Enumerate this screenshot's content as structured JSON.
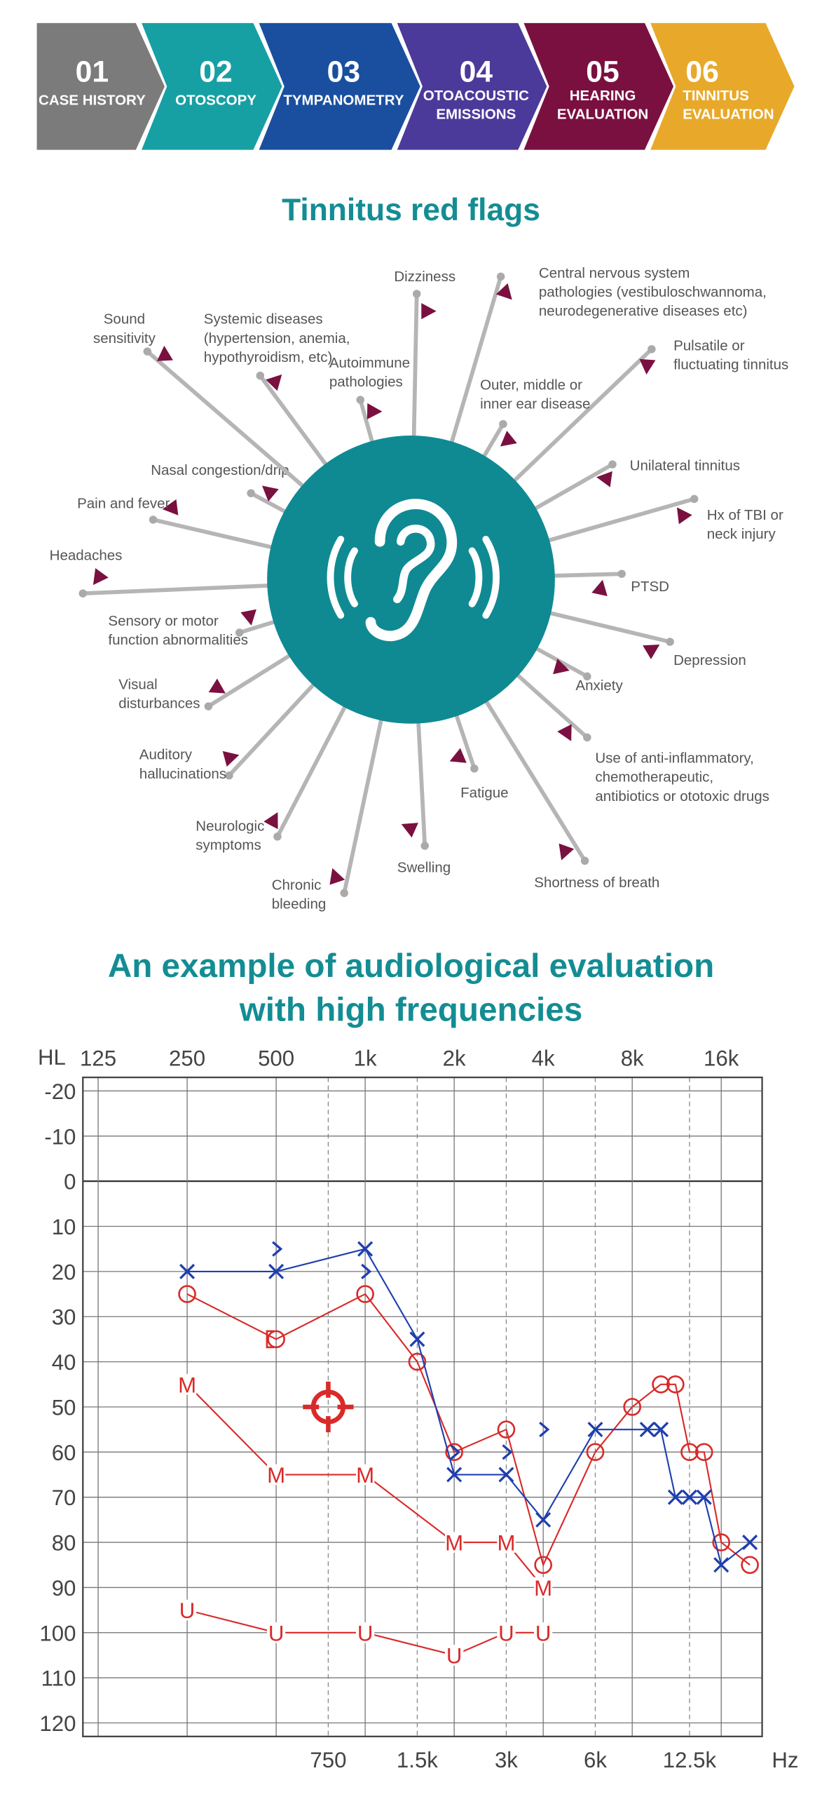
{
  "steps": [
    {
      "number": "01",
      "label": [
        "CASE HISTORY"
      ]
    },
    {
      "number": "02",
      "label": [
        "OTOSCOPY"
      ]
    },
    {
      "number": "03",
      "label": [
        "TYMPANOMETRY"
      ]
    },
    {
      "number": "04",
      "label": [
        "OTOACOUSTIC",
        "EMISSIONS"
      ]
    },
    {
      "number": "05",
      "label": [
        "HEARING",
        "EVALUATION"
      ]
    },
    {
      "number": "06",
      "label": [
        "TINNITUS",
        "EVALUATION"
      ]
    }
  ],
  "red_flags": {
    "title": "Tinnitus red flags",
    "items": [
      {
        "lines": [
          "Dizziness"
        ]
      },
      {
        "lines": [
          "Central nervous system",
          "pathologies (vestibuloschwannoma,",
          "neurodegenerative diseases etc)"
        ]
      },
      {
        "lines": [
          "Pulsatile  or",
          "fluctuating tinnitus"
        ]
      },
      {
        "lines": [
          "Outer, middle or",
          "inner ear disease"
        ]
      },
      {
        "lines": [
          "Unilateral tinnitus"
        ]
      },
      {
        "lines": [
          "Hx of TBI or",
          "neck injury"
        ]
      },
      {
        "lines": [
          "PTSD"
        ]
      },
      {
        "lines": [
          "Depression"
        ]
      },
      {
        "lines": [
          "Anxiety"
        ]
      },
      {
        "lines": [
          "Use of anti-inflammatory,",
          "chemotherapeutic,",
          "antibiotics or ototoxic drugs"
        ]
      },
      {
        "lines": [
          "Shortness of breath"
        ]
      },
      {
        "lines": [
          "Fatigue"
        ]
      },
      {
        "lines": [
          "Swelling"
        ]
      },
      {
        "lines": [
          "Chronic",
          "bleeding"
        ]
      },
      {
        "lines": [
          "Neurologic",
          "symptoms"
        ]
      },
      {
        "lines": [
          "Auditory",
          "hallucinations"
        ]
      },
      {
        "lines": [
          "Visual",
          "disturbances"
        ]
      },
      {
        "lines": [
          "Sensory or motor",
          "function abnormalities"
        ]
      },
      {
        "lines": [
          "Headaches"
        ]
      },
      {
        "lines": [
          "Pain and fever"
        ]
      },
      {
        "lines": [
          "Nasal congestion/drip"
        ]
      },
      {
        "lines": [
          "Sound",
          "sensitivity"
        ]
      },
      {
        "lines": [
          "Systemic diseases",
          "(hypertension, anemia,",
          "hypothyroidism, etc)"
        ]
      },
      {
        "lines": [
          "Autoimmune",
          "pathologies"
        ]
      }
    ]
  },
  "chart_data": {
    "type": "line",
    "title": [
      "An example of audiological evaluation",
      "with high frequencies"
    ],
    "x_label": "Hz",
    "y_label": "HL",
    "xscale": "log",
    "xlim": [
      111,
      22000
    ],
    "ylim": [
      -23,
      123
    ],
    "y_inverted": true,
    "grid": true,
    "xticks": [
      125,
      250,
      500,
      {
        "value": 1000,
        "label": "1k"
      },
      {
        "value": 2000,
        "label": "2k"
      },
      {
        "value": 4000,
        "label": "4k"
      },
      {
        "value": 8000,
        "label": "8k"
      },
      {
        "value": 16000,
        "label": "16k"
      }
    ],
    "xticks_bottom": [
      750,
      {
        "value": 1500,
        "label": "1.5k"
      },
      {
        "value": 3000,
        "label": "3k"
      },
      {
        "value": 6000,
        "label": "6k"
      },
      {
        "value": 12500,
        "label": "12.5k"
      }
    ],
    "yticks": [
      -20,
      -10,
      0,
      10,
      20,
      30,
      40,
      50,
      60,
      70,
      80,
      90,
      100,
      110,
      120
    ],
    "series": [
      {
        "color": "#d92a2a",
        "marker": "M",
        "line": true,
        "x": [
          250,
          500,
          1000,
          2000,
          3000,
          4000
        ],
        "values": [
          45,
          65,
          65,
          80,
          80,
          90
        ]
      },
      {
        "color": "#d92a2a",
        "marker": "U",
        "line": true,
        "x": [
          250,
          500,
          1000,
          2000,
          3000,
          4000
        ],
        "values": [
          95,
          100,
          100,
          105,
          100,
          100
        ]
      },
      {
        "color": "#d92a2a",
        "marker": "o",
        "line": true,
        "x": [
          250,
          500,
          1000,
          1500,
          2000,
          3000,
          4000,
          6000,
          8000,
          10000,
          11200,
          12500,
          14000,
          16000,
          20000
        ],
        "values": [
          25,
          35,
          25,
          40,
          60,
          55,
          85,
          60,
          50,
          45,
          45,
          60,
          60,
          80,
          85
        ]
      },
      {
        "color": "#1f3fae",
        "marker": "x",
        "line": true,
        "x": [
          250,
          500,
          1000,
          1500,
          2000,
          3000,
          4000,
          6000,
          9000,
          10000,
          11200,
          12500,
          14000,
          16000,
          20000
        ],
        "values": [
          20,
          20,
          15,
          35,
          65,
          65,
          75,
          55,
          55,
          55,
          70,
          70,
          70,
          85,
          80
        ]
      },
      {
        "color": "#1f3fae",
        "marker": ">",
        "line": false,
        "x": [
          500,
          1000,
          2000,
          3000,
          4000
        ],
        "values": [
          15,
          20,
          60,
          60,
          55
        ]
      },
      {
        "color": "#d92a2a",
        "marker": "[",
        "line": false,
        "x": [
          500
        ],
        "values": [
          35
        ]
      },
      {
        "color": "#d92a2a",
        "marker": "target",
        "line": false,
        "x": [
          750
        ],
        "values": [
          50
        ]
      }
    ]
  }
}
